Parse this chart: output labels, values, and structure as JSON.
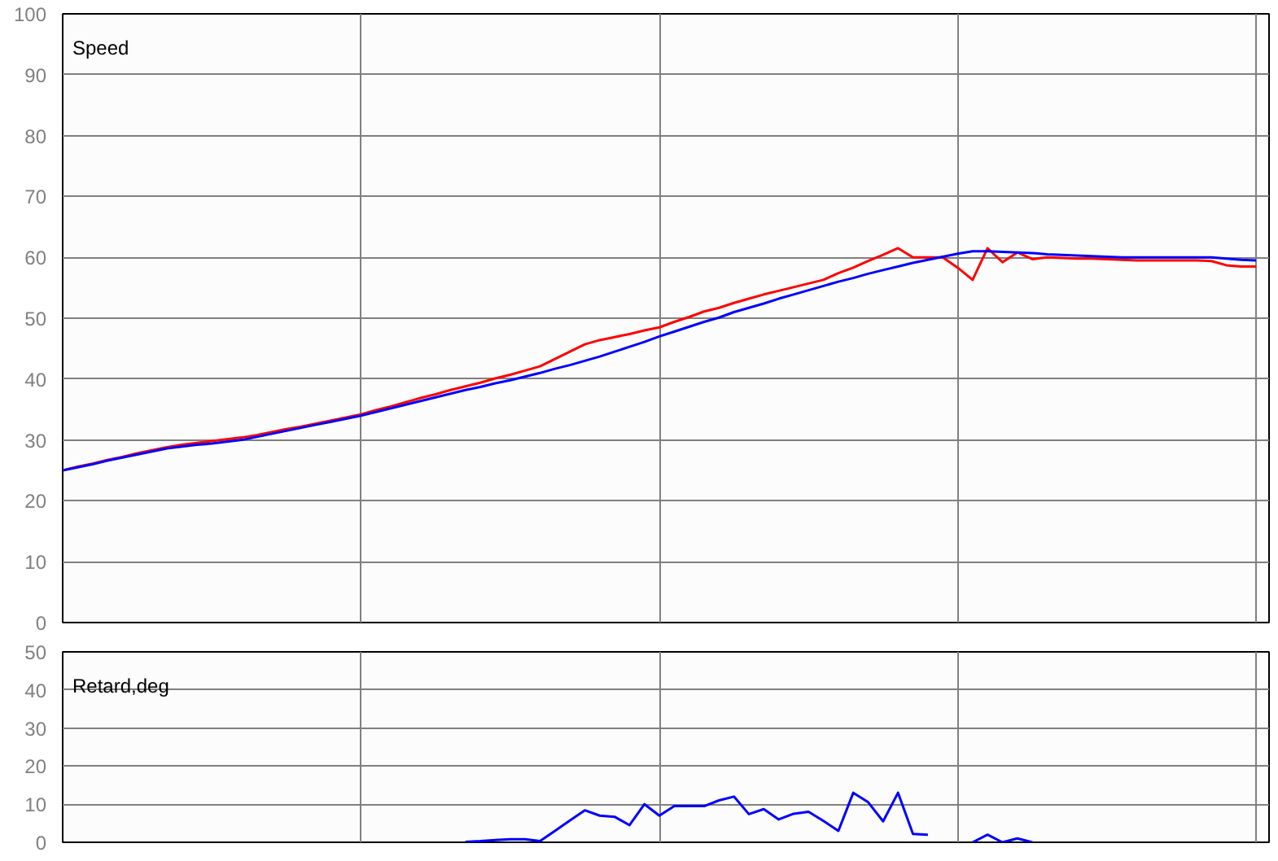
{
  "chart_data": [
    {
      "type": "line",
      "title": "Speed",
      "categories": [
        null,
        null,
        null,
        null,
        null,
        null,
        null,
        null,
        null,
        null,
        null,
        null,
        null,
        null,
        null,
        null,
        null,
        null,
        null,
        null,
        null,
        null,
        null,
        null,
        null,
        null,
        null,
        null,
        null,
        null,
        null,
        null,
        null,
        null,
        null,
        null,
        null,
        null,
        null,
        null,
        null,
        null,
        null,
        null,
        null,
        null,
        null,
        null,
        null,
        null,
        null,
        null,
        null,
        null,
        null,
        null,
        null,
        null,
        null,
        null,
        null,
        null,
        null,
        null,
        null,
        null,
        null,
        null,
        null,
        null,
        null,
        null,
        null,
        null,
        null,
        null,
        null,
        null,
        null,
        null,
        null
      ],
      "ylim": [
        0,
        100
      ],
      "yticks": [
        0,
        10,
        20,
        30,
        40,
        50,
        60,
        70,
        80,
        90,
        100
      ],
      "grid": true,
      "tick_labels": "y",
      "series": [
        {
          "color": "#ff0000",
          "values": [
            25,
            25.6,
            26.1,
            26.7,
            27.2,
            27.8,
            28.3,
            28.8,
            29.2,
            29.5,
            29.8,
            30.1,
            30.4,
            30.8,
            31.3,
            31.8,
            32.2,
            32.7,
            33.2,
            33.7,
            34.2,
            34.9,
            35.5,
            36.2,
            36.9,
            37.5,
            38.2,
            38.8,
            39.4,
            40.1,
            40.7,
            41.4,
            42.1,
            43.3,
            44.5,
            45.7,
            46.4,
            46.9,
            47.4,
            48,
            48.5,
            49.4,
            50.2,
            51.1,
            51.7,
            52.5,
            53.2,
            53.9,
            54.5,
            55.1,
            55.7,
            56.3,
            57.4,
            58.3,
            59.4,
            60.4,
            61.5,
            60,
            60,
            60,
            58.3,
            56.3,
            61.5,
            59.2,
            60.8,
            59.7,
            60,
            59.9,
            59.8,
            59.8,
            59.7,
            59.6,
            59.5,
            59.5,
            59.5,
            59.5,
            59.5,
            59.4,
            58.7,
            58.5,
            58.5
          ]
        },
        {
          "color": "#0000ff",
          "values": [
            25,
            25.5,
            26,
            26.6,
            27.1,
            27.6,
            28.1,
            28.6,
            28.9,
            29.2,
            29.4,
            29.7,
            30,
            30.5,
            31,
            31.5,
            32,
            32.5,
            33,
            33.5,
            34,
            34.6,
            35.2,
            35.8,
            36.4,
            37,
            37.6,
            38.2,
            38.7,
            39.3,
            39.8,
            40.4,
            41,
            41.7,
            42.3,
            43,
            43.7,
            44.5,
            45.3,
            46.1,
            47,
            47.8,
            48.6,
            49.4,
            50.1,
            51,
            51.7,
            52.4,
            53.2,
            53.9,
            54.6,
            55.3,
            56,
            56.6,
            57.3,
            57.9,
            58.5,
            59.1,
            59.6,
            60.1,
            60.6,
            61,
            61,
            60.9,
            60.8,
            60.7,
            60.5,
            60.4,
            60.3,
            60.2,
            60.1,
            60,
            60,
            60,
            60,
            60,
            60,
            60,
            59.8,
            59.6,
            59.5
          ]
        }
      ]
    },
    {
      "type": "line",
      "title": "Retard,deg",
      "categories": [
        null,
        null,
        null,
        null,
        null,
        null,
        null,
        null,
        null,
        null,
        null,
        null,
        null,
        null,
        null,
        null,
        null,
        null,
        null,
        null,
        null,
        null,
        null,
        null,
        null,
        null,
        null,
        null,
        null,
        null,
        null,
        null,
        null,
        null,
        null,
        null,
        null,
        null,
        null,
        null,
        null,
        null,
        null,
        null,
        null,
        null,
        null,
        null,
        null,
        null,
        null,
        null,
        null,
        null,
        null,
        null,
        null,
        null,
        null,
        null,
        null,
        null,
        null,
        null,
        null,
        null,
        null,
        null,
        null,
        null,
        null,
        null,
        null,
        null,
        null,
        null,
        null,
        null,
        null,
        null,
        null
      ],
      "ylim": [
        0,
        50
      ],
      "yticks": [
        0,
        10,
        20,
        30,
        40,
        50
      ],
      "grid": true,
      "tick_labels": "y",
      "series": [
        {
          "color": "#0000ff",
          "values": [
            null,
            null,
            null,
            null,
            null,
            null,
            null,
            null,
            null,
            null,
            null,
            null,
            null,
            null,
            null,
            null,
            null,
            null,
            null,
            null,
            null,
            null,
            null,
            null,
            null,
            null,
            null,
            0.1,
            0.3,
            0.6,
            0.8,
            0.8,
            0.3,
            3,
            5.7,
            8.4,
            7,
            6.7,
            4.5,
            10,
            7,
            9.5,
            9.5,
            9.5,
            11,
            12,
            7.4,
            8.7,
            6,
            7.5,
            8,
            5.6,
            3,
            13,
            10.5,
            5.5,
            13,
            2.2,
            2,
            null,
            null,
            0,
            2,
            0,
            1,
            0,
            null,
            null,
            null,
            null,
            null,
            null,
            null,
            null,
            null,
            null,
            null,
            null,
            null,
            null,
            null
          ]
        }
      ]
    }
  ]
}
